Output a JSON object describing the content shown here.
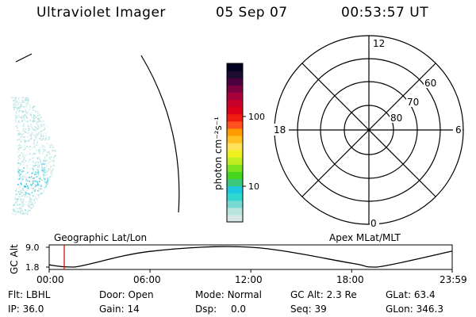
{
  "header": {
    "instrument": "Ultraviolet Imager",
    "date": "05 Sep 07",
    "time": "00:53:57 UT"
  },
  "colorbar": {
    "unit_label": "photon cm⁻²s⁻¹",
    "tick_labels": [
      "100",
      "10"
    ],
    "colors": [
      "#d6e8e4",
      "#b8e4dc",
      "#78d8d4",
      "#30d8d0",
      "#1cc8e0",
      "#3cc87c",
      "#46d41e",
      "#7ce21e",
      "#c0ee22",
      "#f0f020",
      "#ffe25a",
      "#ffc020",
      "#ff9a00",
      "#ff5020",
      "#f01c10",
      "#dc0018",
      "#c8002a",
      "#a8003c",
      "#7c0040",
      "#4c0040",
      "#1c0c30",
      "#000020"
    ]
  },
  "polar_plot": {
    "mlt_labels": {
      "top": "12",
      "left": "18",
      "right": "6",
      "bottom": "0"
    },
    "lat_labels": [
      "60",
      "70",
      "80"
    ]
  },
  "timeline": {
    "left_label": "Geographic Lat/Lon",
    "right_label": "Apex MLat/MLT",
    "y_axis_label": "GC Alt",
    "y_ticks": [
      "9.0",
      "1.8"
    ],
    "x_ticks": [
      "00:00",
      "06:00",
      "12:00",
      "18:00",
      "23:59"
    ],
    "marker_color": "#c81414"
  },
  "chart_data": {
    "type": "line",
    "title": "",
    "xlabel": "",
    "ylabel": "GC Alt",
    "x": [
      "00:00",
      "01:30",
      "06:00",
      "12:00",
      "18:00",
      "19:30",
      "23:59"
    ],
    "y": [
      2.6,
      1.8,
      7.5,
      9.0,
      3.2,
      1.8,
      7.6
    ],
    "xlim": [
      "00:00",
      "23:59"
    ],
    "ylim": [
      1.8,
      9.0
    ],
    "marker_time": "00:53:57"
  },
  "info": {
    "row1": [
      {
        "label": "Flt:",
        "value": "LBHL"
      },
      {
        "label": "Door:",
        "value": "Open"
      },
      {
        "label": "Mode:",
        "value": "Normal"
      },
      {
        "label": "GC Alt:",
        "value": "2.3 Re"
      },
      {
        "label": "GLat:",
        "value": "63.4"
      }
    ],
    "row2": [
      {
        "label": "IP:",
        "value": "36.0"
      },
      {
        "label": "Gain:",
        "value": "14"
      },
      {
        "label": "Dsp:",
        "value": "0.0"
      },
      {
        "label": "Seq:",
        "value": "39"
      },
      {
        "label": "GLon:",
        "value": "346.3"
      }
    ]
  }
}
